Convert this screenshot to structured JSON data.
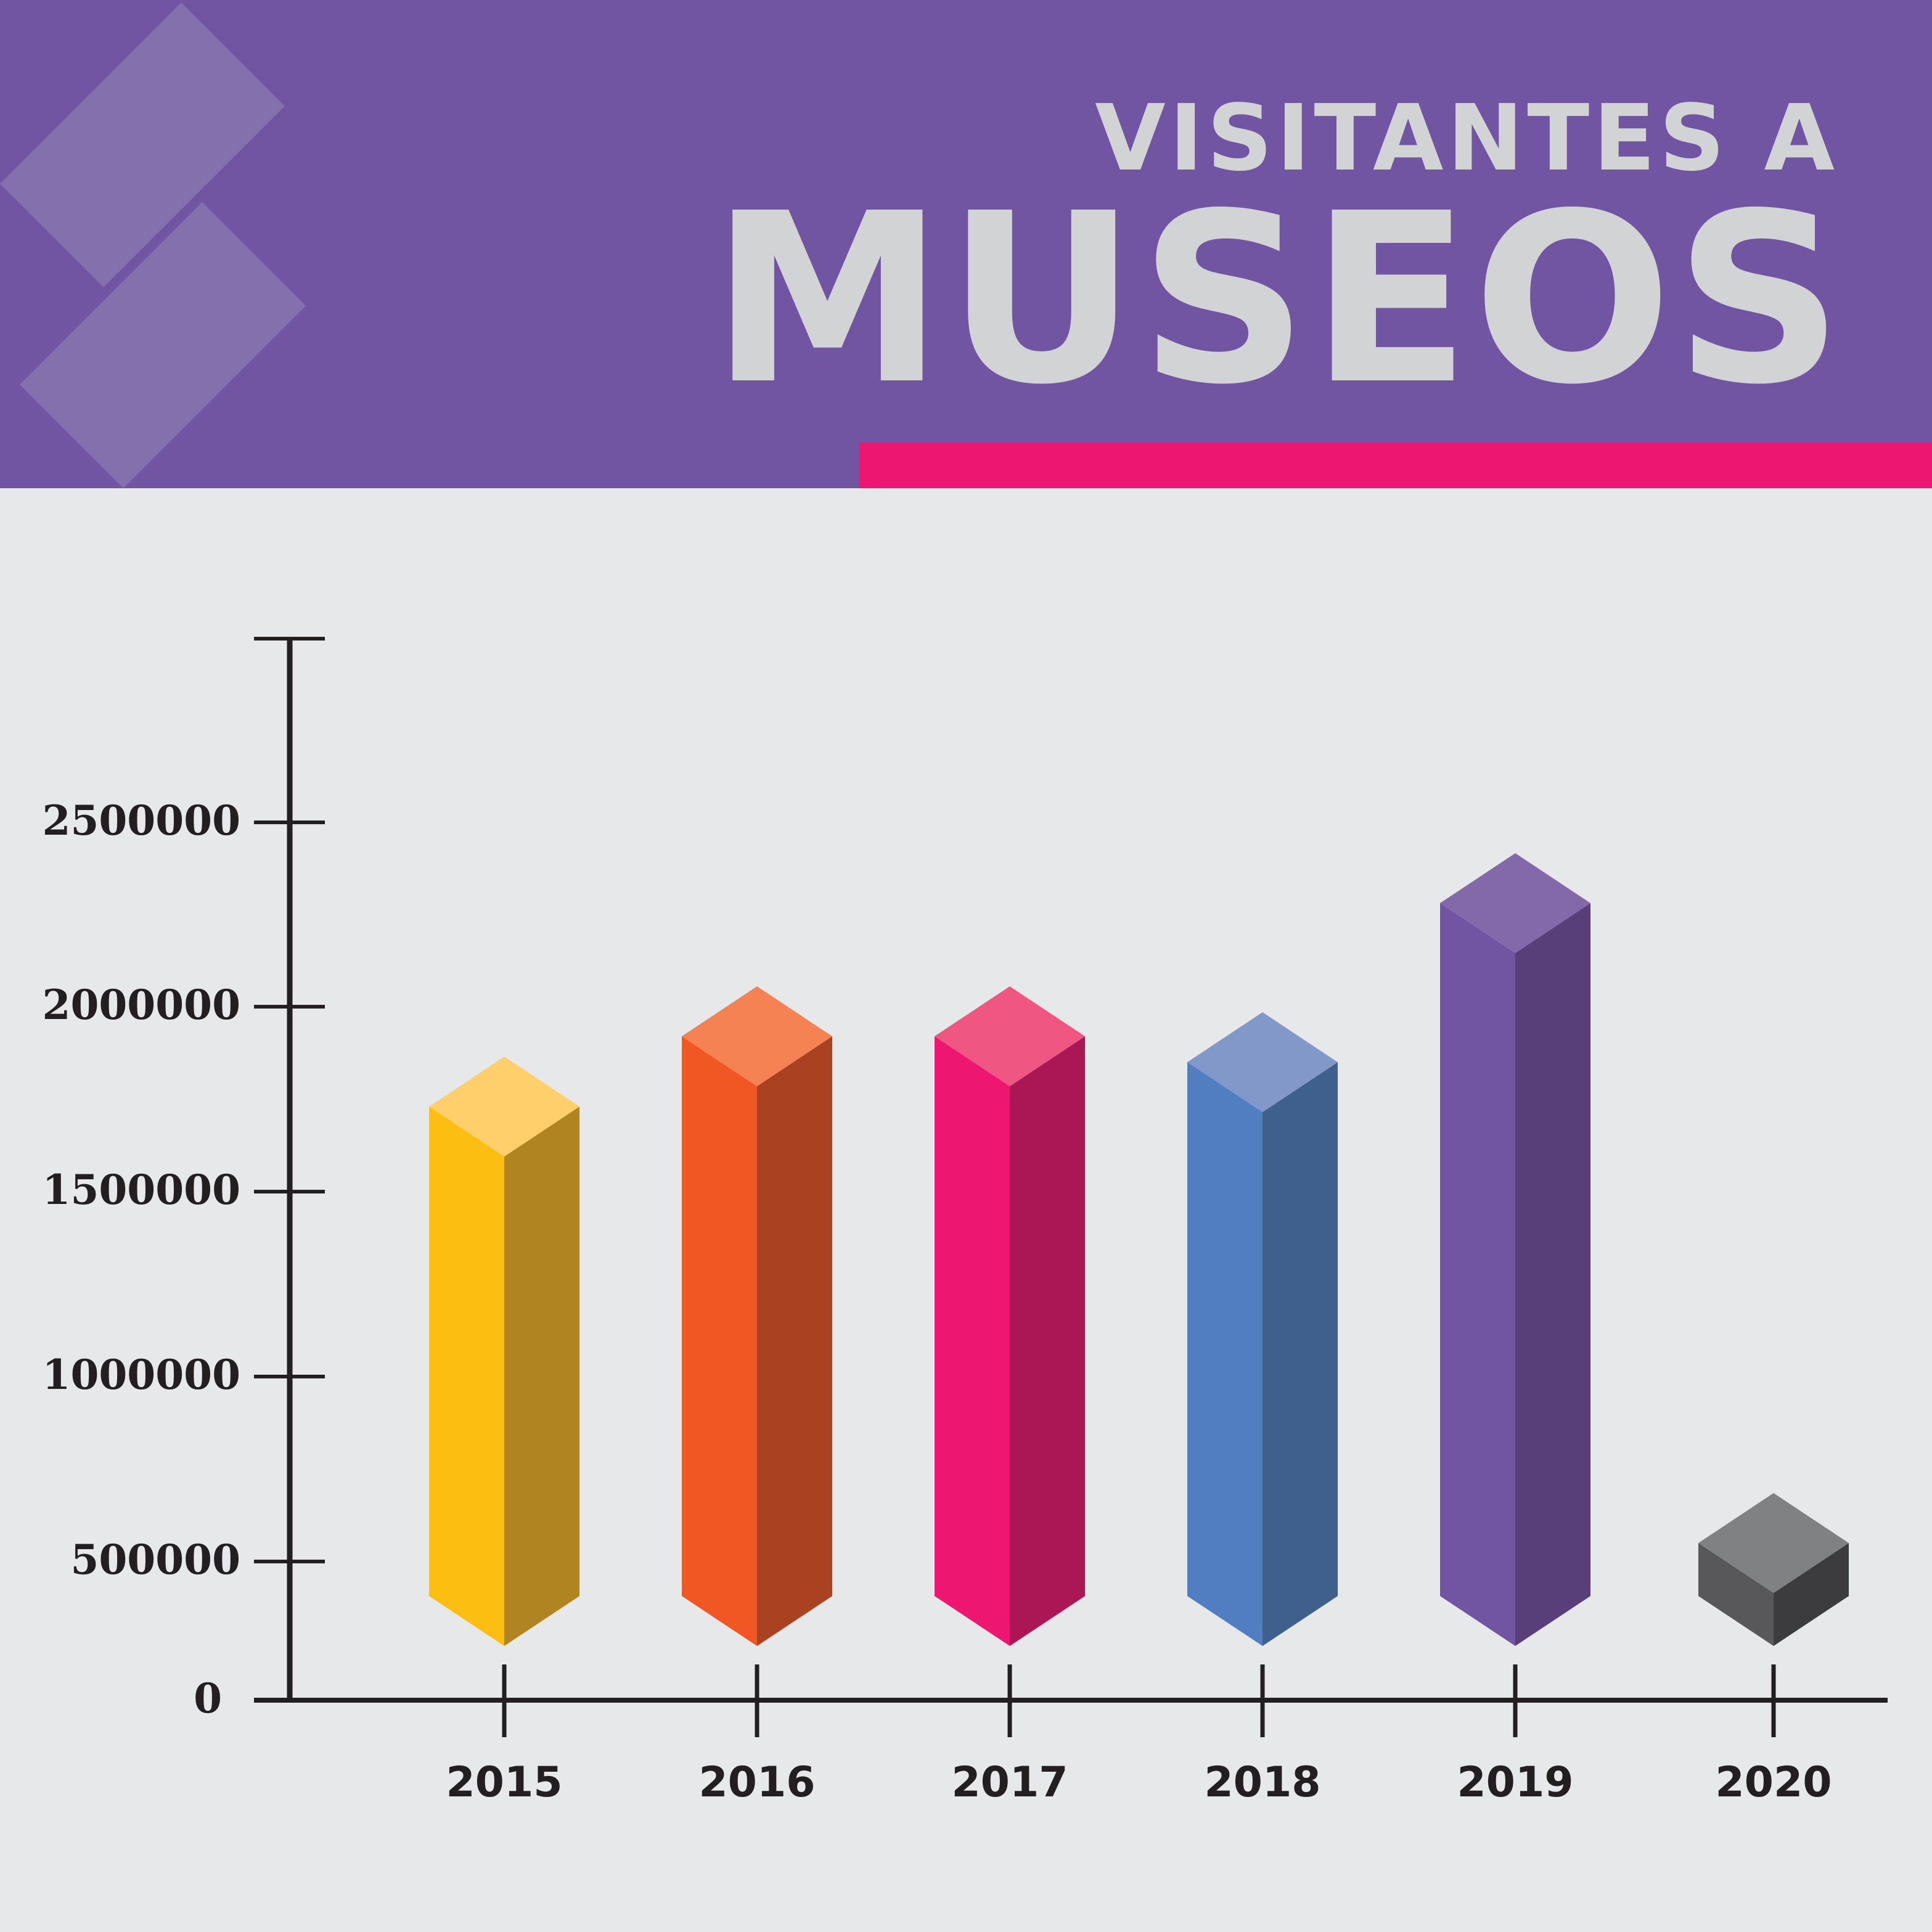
{
  "header": {
    "title_line1": "VISITANTES A",
    "title_line2": "MUSEOS",
    "background_color": "#7155a3",
    "accent_color": "#ed1670"
  },
  "chart_data": {
    "type": "bar",
    "style": "3d-isometric",
    "title": "VISITANTES A MUSEOS",
    "xlabel": "",
    "ylabel": "",
    "categories": [
      "2015",
      "2016",
      "2017",
      "2018",
      "2019",
      "2020"
    ],
    "values": [
      1730000,
      1920000,
      1920000,
      1850000,
      2280000,
      550000
    ],
    "colors": [
      "#fdbe12",
      "#f05722",
      "#ed1670",
      "#507ec0",
      "#7155a3",
      "#58585a"
    ],
    "y_ticks": [
      0,
      500000,
      1000000,
      1500000,
      2000000,
      2500000
    ],
    "y_tick_labels": [
      "0",
      "500000",
      "1000000",
      "1500000",
      "2000000",
      "2500000"
    ],
    "ylim": [
      0,
      3000000
    ],
    "grid": false,
    "legend": "none"
  }
}
